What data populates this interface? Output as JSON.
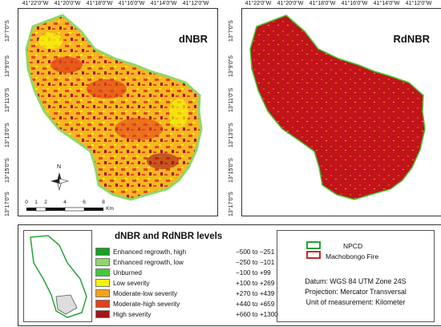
{
  "maps": {
    "left": {
      "title": "dNBR"
    },
    "right": {
      "title": "RdNBR"
    },
    "lon_ticks_left": [
      "41°22'0\"W",
      "41°20'0\"W",
      "41°18'0\"W",
      "41°16'0\"W",
      "41°14'0\"W",
      "41°12'0\"W"
    ],
    "lon_ticks_right": [
      "41°22'0\"W",
      "41°20'0\"W",
      "41°18'0\"W",
      "41°16'0\"W",
      "41°14'0\"W",
      "41°12'0\"W"
    ],
    "lat_ticks": [
      "13°7'0\"S",
      "13°9'0\"S",
      "13°11'0\"S",
      "13°13'0\"S",
      "13°15'0\"S",
      "13°17'0\"S"
    ],
    "scale": {
      "numbers": [
        "0",
        "1",
        "2",
        "4",
        "6",
        "8"
      ],
      "unit": "Km"
    },
    "north_label": "N"
  },
  "legend": {
    "title": "dNBR and RdNBR levels",
    "classes": [
      {
        "label": "Enhanced regrowth, high",
        "range": "−500 to −251",
        "color": "#14a21f"
      },
      {
        "label": "Enhanced regrowth, low",
        "range": "−250 to −101",
        "color": "#8ed86a"
      },
      {
        "label": "Unburned",
        "range": "−100 to +99",
        "color": "#46c83a"
      },
      {
        "label": "Low severity",
        "range": "+100 to +269",
        "color": "#f6f20a"
      },
      {
        "label": "Moderate-low severity",
        "range": "+270 to +439",
        "color": "#f5a21a"
      },
      {
        "label": "Moderate-high severity",
        "range": "+440 to +659",
        "color": "#e2421a"
      },
      {
        "label": "High severity",
        "range": "+660 to +1300",
        "color": "#a5141a"
      }
    ]
  },
  "boundaries": {
    "npcd": {
      "label": "NPCD",
      "color": "#27a33a"
    },
    "fire": {
      "label": "Machobongo Fire",
      "color": "#c8282a"
    }
  },
  "map_info": {
    "datum": "Datum: WGS 84 UTM Zone 24S",
    "projection": "Projection: Mercator Transversal",
    "unit": "Unit of measurement: Kilometer"
  }
}
